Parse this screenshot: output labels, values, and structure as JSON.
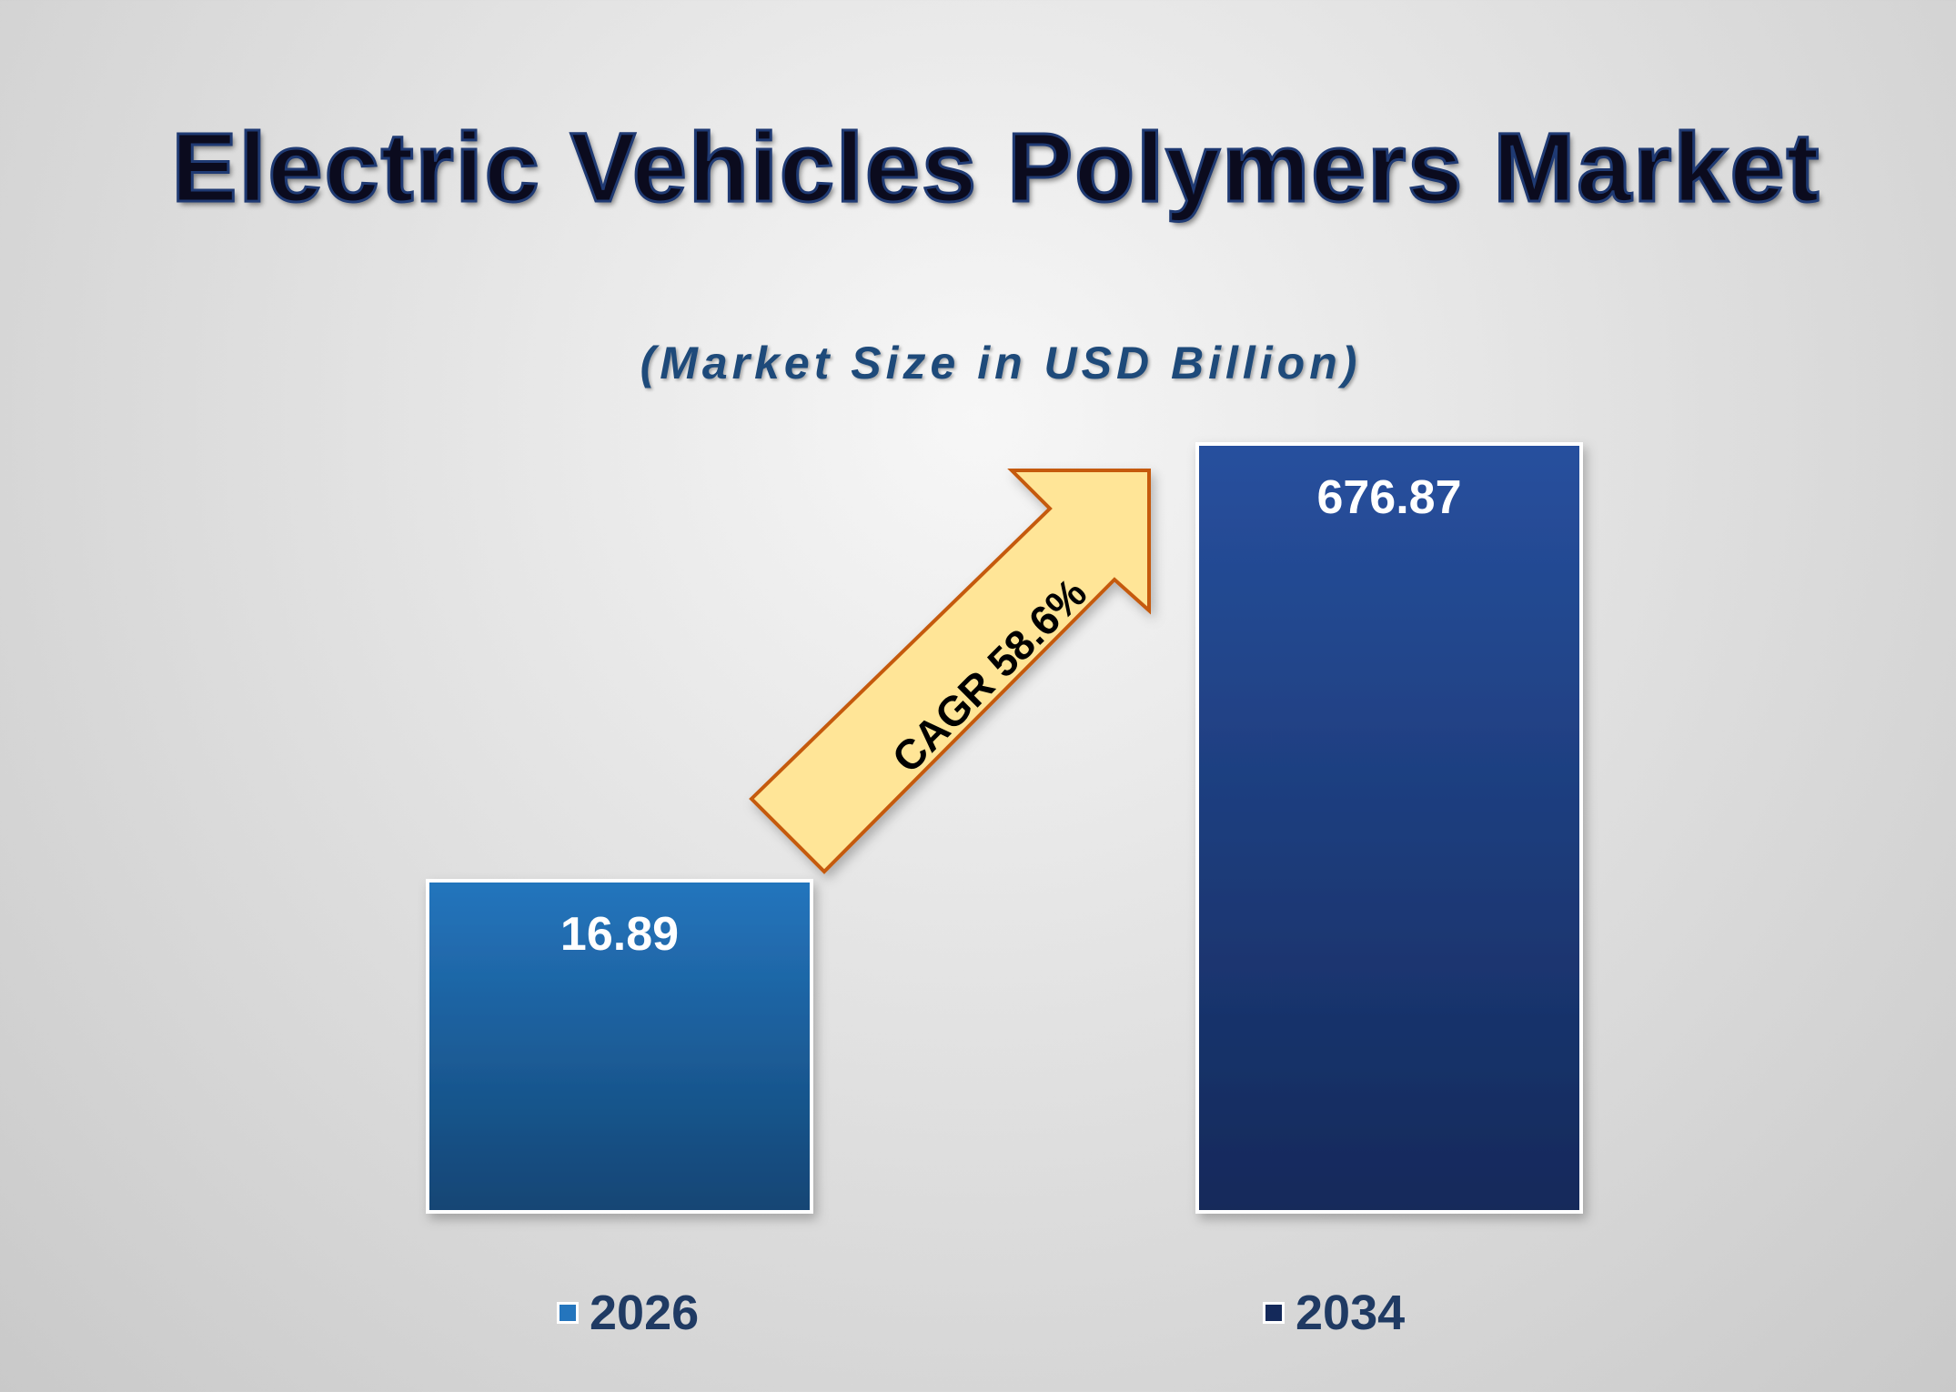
{
  "chart_data": {
    "type": "bar",
    "title": "Electric Vehicles Polymers Market",
    "subtitle": "(Market Size in USD Billion)",
    "categories": [
      "2026",
      "2034"
    ],
    "values": [
      16.89,
      676.87
    ],
    "value_labels": [
      "16.89",
      "676.87"
    ],
    "annotation": "CAGR 58.6%",
    "legend_position": "bottom",
    "grid": false,
    "colors": {
      "bar_2026_top": "#2475bd",
      "bar_2026_bottom": "#124574",
      "bar_2034_top": "#27509e",
      "bar_2034_bottom": "#14295a",
      "arrow_fill": "#ffe597",
      "arrow_stroke": "#c55a11",
      "legend_text": "#1f3a63"
    }
  }
}
